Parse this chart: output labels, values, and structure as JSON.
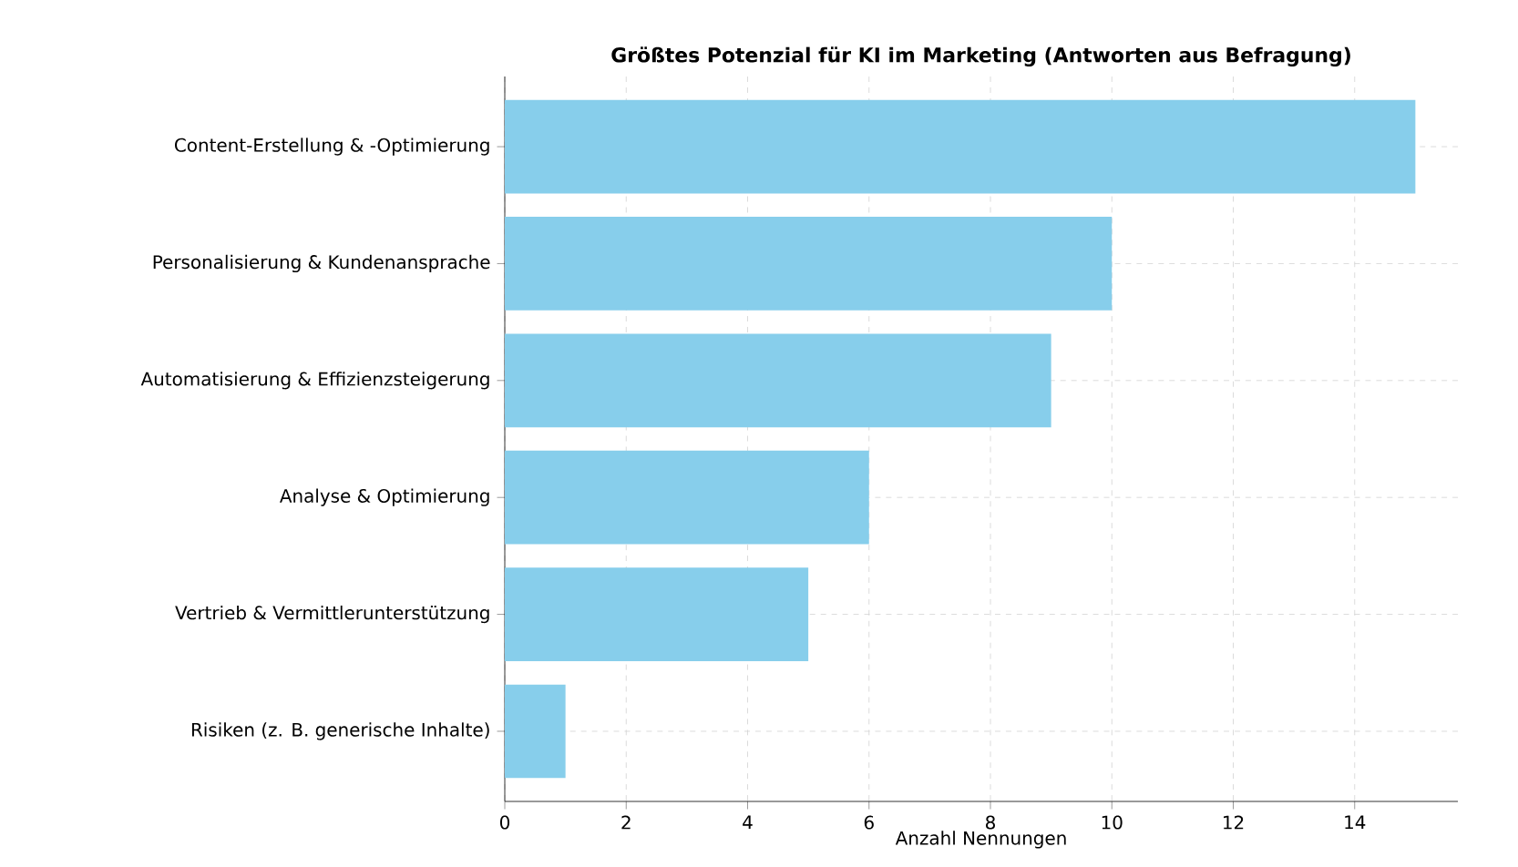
{
  "chart_data": {
    "type": "bar",
    "orientation": "horizontal",
    "title": "Größtes Potenzial für KI im Marketing (Antworten aus Befragung)",
    "xlabel": "Anzahl Nennungen",
    "categories": [
      "Content-Erstellung & -Optimierung",
      "Personalisierung & Kundenansprache",
      "Automatisierung & Effizienzsteigerung",
      "Analyse & Optimierung",
      "Vertrieb & Vermittlerunterstützung",
      "Risiken (z. B. generische Inhalte)"
    ],
    "values": [
      15,
      10,
      9,
      6,
      5,
      1
    ],
    "color": "#87ceeb",
    "xlim": [
      0,
      15.7
    ],
    "xticks": [
      0,
      2,
      4,
      6,
      8,
      10,
      12,
      14
    ],
    "grid": true
  }
}
